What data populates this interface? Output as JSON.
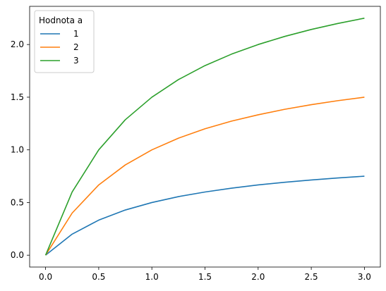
{
  "chart_data": {
    "type": "line",
    "title": "",
    "xlabel": "",
    "ylabel": "",
    "xlim": [
      -0.15,
      3.15
    ],
    "ylim": [
      -0.1125,
      2.3625
    ],
    "xticks": [
      0.0,
      0.5,
      1.0,
      1.5,
      2.0,
      2.5,
      3.0
    ],
    "xtick_labels": [
      "0.0",
      "0.5",
      "1.0",
      "1.5",
      "2.0",
      "2.5",
      "3.0"
    ],
    "yticks": [
      0.0,
      0.5,
      1.0,
      1.5,
      2.0
    ],
    "ytick_labels": [
      "0.0",
      "0.5",
      "1.0",
      "1.5",
      "2.0"
    ],
    "grid": false,
    "legend": {
      "title": "Hodnota a",
      "placement": "top-left"
    },
    "x": [
      0.0,
      0.25,
      0.5,
      0.75,
      1.0,
      1.25,
      1.5,
      1.75,
      2.0,
      2.25,
      2.5,
      2.75,
      3.0
    ],
    "series": [
      {
        "name": "1",
        "color": "#1f77b4",
        "values": [
          0.0,
          0.2,
          0.333,
          0.429,
          0.5,
          0.556,
          0.6,
          0.636,
          0.667,
          0.692,
          0.714,
          0.733,
          0.75
        ]
      },
      {
        "name": "2",
        "color": "#ff7f0e",
        "values": [
          0.0,
          0.4,
          0.667,
          0.857,
          1.0,
          1.111,
          1.2,
          1.273,
          1.333,
          1.385,
          1.429,
          1.467,
          1.5
        ]
      },
      {
        "name": "3",
        "color": "#2ca02c",
        "values": [
          0.0,
          0.6,
          1.0,
          1.286,
          1.5,
          1.667,
          1.8,
          1.909,
          2.0,
          2.077,
          2.143,
          2.2,
          2.25
        ]
      }
    ]
  }
}
